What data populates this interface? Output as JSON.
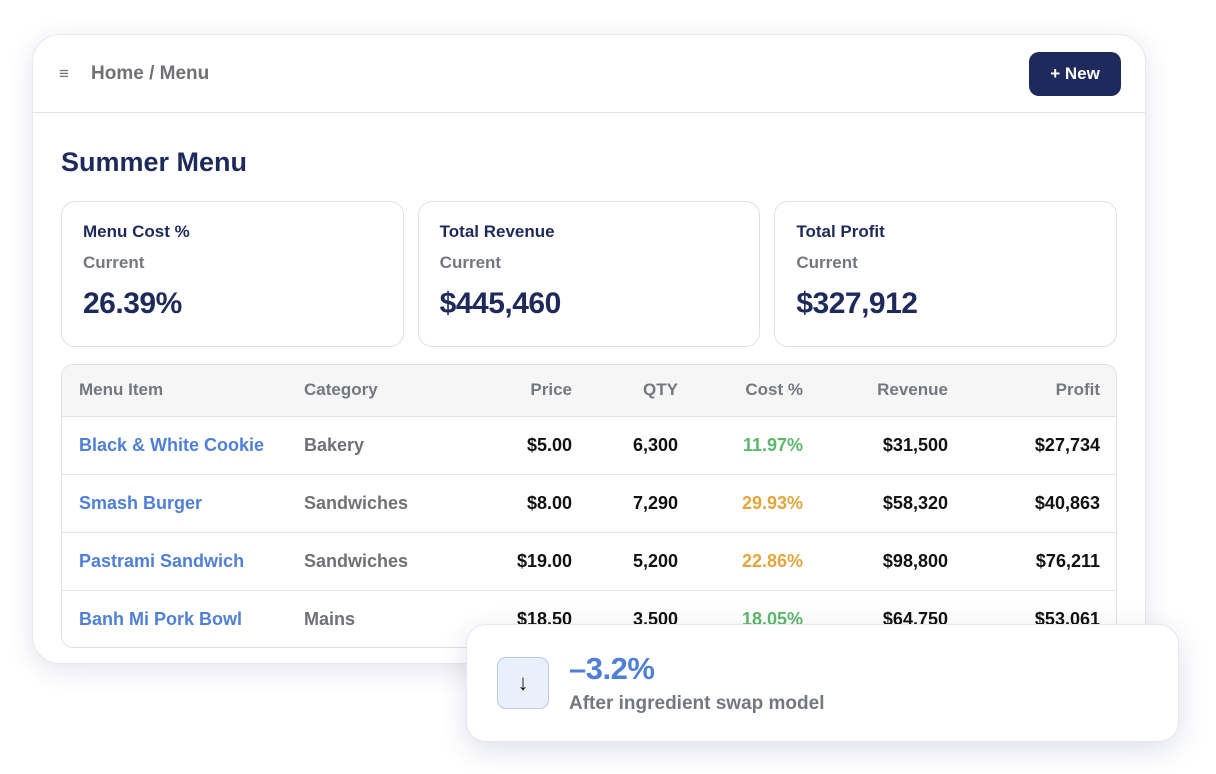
{
  "header": {
    "menu_icon": "≡",
    "breadcrumb": "Home / Menu",
    "new_button_label": "+ New"
  },
  "page": {
    "title": "Summer Menu"
  },
  "cards": [
    {
      "title": "Menu Cost %",
      "subtitle": "Current",
      "value": "26.39%"
    },
    {
      "title": "Total Revenue",
      "subtitle": "Current",
      "value": "$445,460"
    },
    {
      "title": "Total Profit",
      "subtitle": "Current",
      "value": "$327,912"
    }
  ],
  "table": {
    "columns": [
      "Menu Item",
      "Category",
      "Price",
      "QTY",
      "Cost %",
      "Revenue",
      "Profit"
    ],
    "rows": [
      {
        "item": "Black & White Cookie",
        "category": "Bakery",
        "price": "$5.00",
        "qty": "6,300",
        "cost": "11.97%",
        "revenue": "$31,500",
        "profit": "$27,734"
      },
      {
        "item": "Smash Burger",
        "category": "Sandwiches",
        "price": "$8.00",
        "qty": "7,290",
        "cost": "29.93%",
        "revenue": "$58,320",
        "profit": "$40,863"
      },
      {
        "item": "Pastrami Sandwich",
        "category": "Sandwiches",
        "price": "$19.00",
        "qty": "5,200",
        "cost": "22.86%",
        "revenue": "$98,800",
        "profit": "$76,211"
      },
      {
        "item": "Banh Mi Pork Bowl",
        "category": "Mains",
        "price": "$18.50",
        "qty": "3,500",
        "cost": "18.05%",
        "revenue": "$64,750",
        "profit": "$53,061"
      }
    ]
  },
  "colors": {
    "cost_good": "#5cb96a",
    "cost_warn": "#e4a63c"
  },
  "cost_colors": [
    "cost_good",
    "cost_warn",
    "cost_warn",
    "cost_good"
  ],
  "popover": {
    "arrow_icon": "↓",
    "value": "–3.2%",
    "caption": "After ingredient swap model"
  }
}
